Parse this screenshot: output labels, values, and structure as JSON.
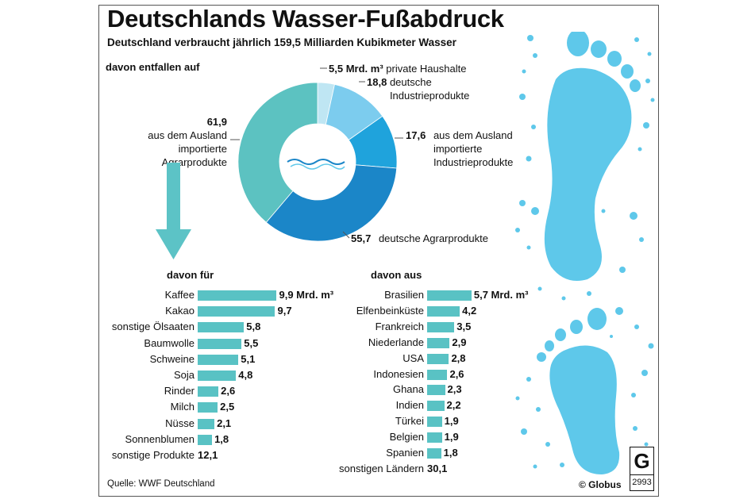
{
  "title": "Deutschlands Wasser-Fußabdruck",
  "subtitle": "Deutschland verbraucht jährlich 159,5 Milliarden Kubikmeter Wasser",
  "source": "Quelle: WWF Deutschland",
  "credit": "© Globus",
  "logo_letter": "G",
  "logo_number": "2993",
  "colors": {
    "bar": "#59c2c4",
    "arrow": "#5cc3c6",
    "footprint": "#5ec8ea",
    "donut": [
      "#bfe6f3",
      "#7cccee",
      "#1fa3dc",
      "#1b86c8",
      "#5cc2c1"
    ]
  },
  "chart_data": [
    {
      "type": "pie",
      "title": "davon entfallen auf",
      "unit": "Mrd. m³",
      "segments": [
        {
          "value": 5.5,
          "value_text": "5,5",
          "label": "private Haushalte"
        },
        {
          "value": 18.8,
          "value_text": "18,8",
          "label": "deutsche\nIndustrieprodukte"
        },
        {
          "value": 17.6,
          "value_text": "17,6",
          "label": "aus dem Ausland\nimportierte\nIndustrieprodukte"
        },
        {
          "value": 55.7,
          "value_text": "55,7",
          "label": "deutsche Agrarprodukte"
        },
        {
          "value": 61.9,
          "value_text": "61,9",
          "label": "aus dem Ausland\nimportierte Agrarprodukte"
        }
      ]
    },
    {
      "type": "bar",
      "title": "davon für",
      "unit": "Mrd. m³",
      "categories": [
        "Kaffee",
        "Kakao",
        "sonstige Ölsaaten",
        "Baumwolle",
        "Schweine",
        "Soja",
        "Rinder",
        "Milch",
        "Nüsse",
        "Sonnenblumen",
        "sonstige Produkte"
      ],
      "values": [
        9.9,
        9.7,
        5.8,
        5.5,
        5.1,
        4.8,
        2.6,
        2.5,
        2.1,
        1.8,
        12.1
      ],
      "value_labels": [
        "9,9 Mrd. m³",
        "9,7",
        "5,8",
        "5,5",
        "5,1",
        "4,8",
        "2,6",
        "2,5",
        "2,1",
        "1,8",
        "12,1"
      ],
      "bar_shown": [
        true,
        true,
        true,
        true,
        true,
        true,
        true,
        true,
        true,
        true,
        false
      ]
    },
    {
      "type": "bar",
      "title": "davon aus",
      "unit": "Mrd. m³",
      "categories": [
        "Brasilien",
        "Elfenbeinküste",
        "Frankreich",
        "Niederlande",
        "USA",
        "Indonesien",
        "Ghana",
        "Indien",
        "Türkei",
        "Belgien",
        "Spanien",
        "sonstigen Ländern"
      ],
      "values": [
        5.7,
        4.2,
        3.5,
        2.9,
        2.8,
        2.6,
        2.3,
        2.2,
        1.9,
        1.9,
        1.8,
        30.1
      ],
      "value_labels": [
        "5,7 Mrd. m³",
        "4,2",
        "3,5",
        "2,9",
        "2,8",
        "2,6",
        "2,3",
        "2,2",
        "1,9",
        "1,9",
        "1,8",
        "30,1"
      ],
      "bar_shown": [
        true,
        true,
        true,
        true,
        true,
        true,
        true,
        true,
        true,
        true,
        true,
        false
      ]
    }
  ]
}
